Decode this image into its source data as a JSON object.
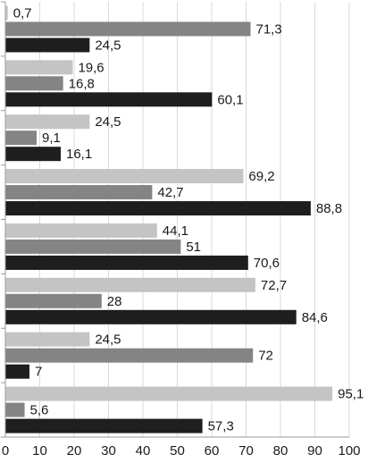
{
  "chart_data": {
    "type": "bar",
    "orientation": "horizontal",
    "title": "",
    "xlabel": "",
    "ylabel": "",
    "xlim": [
      0,
      100
    ],
    "x_ticks": [
      "0",
      "10",
      "20",
      "30",
      "40",
      "50",
      "60",
      "70",
      "80",
      "90",
      "100"
    ],
    "grid": "vertical gridlines",
    "legend": "none",
    "decimal_separator": ",",
    "group_count": 8,
    "series": [
      {
        "color": "#c4c4c4",
        "values": [
          0.7,
          19.6,
          24.5,
          69.2,
          44.1,
          72.7,
          24.5,
          95.1
        ]
      },
      {
        "color": "#848484",
        "values": [
          71.3,
          16.8,
          9.1,
          42.7,
          51,
          28,
          72,
          5.6
        ]
      },
      {
        "color": "#1e1e1e",
        "values": [
          24.5,
          60.1,
          16.1,
          88.8,
          70.6,
          84.6,
          7,
          57.3
        ]
      }
    ]
  }
}
